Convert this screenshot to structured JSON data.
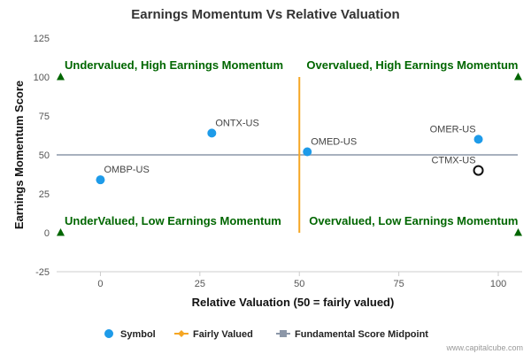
{
  "chart_data": {
    "type": "scatter",
    "title": "Earnings Momentum Vs Relative Valuation",
    "xlabel": "Relative Valuation (50 = fairly valued)",
    "ylabel": "Earnings Momentum Score",
    "xlim": [
      -11,
      106
    ],
    "ylim": [
      -25,
      125
    ],
    "x_ticks": [
      0,
      25,
      50,
      75,
      100
    ],
    "y_ticks": [
      -25,
      0,
      25,
      50,
      75,
      100,
      125
    ],
    "grid": false,
    "points": [
      {
        "label": "OMBP-US",
        "x": 0,
        "y": 34,
        "style": "symbol"
      },
      {
        "label": "ONTX-US",
        "x": 28,
        "y": 64,
        "style": "symbol"
      },
      {
        "label": "OMED-US",
        "x": 52,
        "y": 52,
        "style": "symbol"
      },
      {
        "label": "OMER-US",
        "x": 95,
        "y": 60,
        "style": "symbol"
      },
      {
        "label": "CTMX-US",
        "x": 95,
        "y": 40,
        "style": "highlight"
      }
    ],
    "fairly_valued_line": {
      "x": 50,
      "y_from": 0,
      "y_to": 100
    },
    "midpoint_line": {
      "y": 50
    },
    "quadrant_labels": [
      {
        "text": "Undervalued, High Earnings Momentum",
        "x": -9,
        "y": 105,
        "anchor": "start"
      },
      {
        "text": "Overvalued, High Earnings Momentum",
        "x": 105,
        "y": 105,
        "anchor": "end"
      },
      {
        "text": "UnderValued, Low Earnings Momentum",
        "x": -9,
        "y": 5,
        "anchor": "start"
      },
      {
        "text": "Overvalued, Low Earnings Momentum",
        "x": 105,
        "y": 5,
        "anchor": "end"
      }
    ],
    "corner_markers": [
      {
        "x": -10,
        "y": 100
      },
      {
        "x": 105,
        "y": 100
      },
      {
        "x": -10,
        "y": 0
      },
      {
        "x": 105,
        "y": 0
      }
    ],
    "legend": {
      "placement": "bottom",
      "items": [
        {
          "name": "Symbol",
          "kind": "dot",
          "color": "#1e9be9"
        },
        {
          "name": "Fairly Valued",
          "kind": "line-diamond",
          "color": "#f5a623"
        },
        {
          "name": "Fundamental Score Midpoint",
          "kind": "line-square",
          "color": "#8c97a8"
        }
      ]
    },
    "colors": {
      "symbol": "#1e9be9",
      "highlight_stroke": "#111111",
      "fairly_valued": "#f5a623",
      "midpoint": "#8c97a8",
      "quadrant_text": "#006600",
      "corner_marker": "#006600",
      "axis": "#cccccc"
    }
  },
  "credit": "www.capitalcube.com"
}
